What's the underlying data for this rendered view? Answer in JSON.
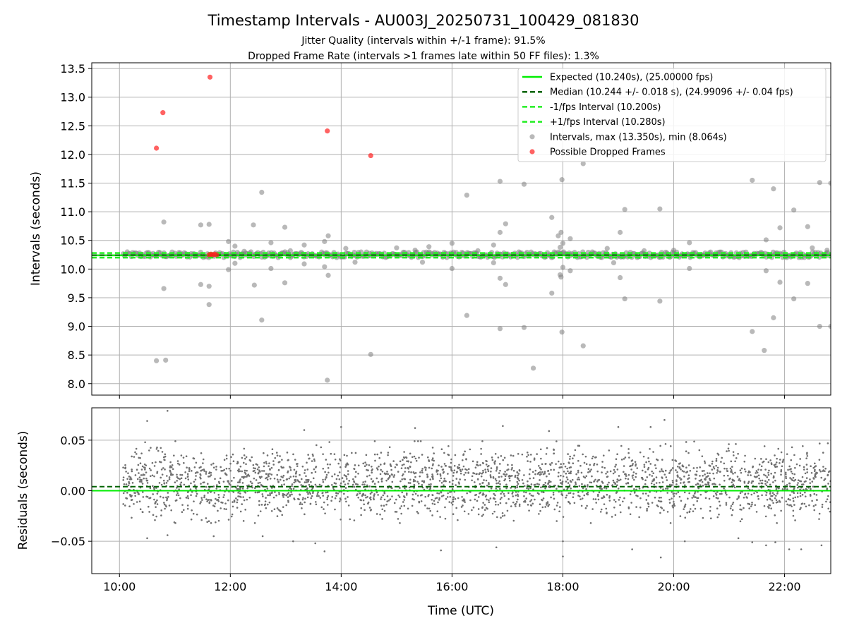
{
  "chart_data": [
    {
      "type": "scatter",
      "panel": "intervals",
      "title": "Timestamp Intervals - AU003J_20250731_100429_081830",
      "subtitle_lines": [
        "Jitter Quality (intervals within +/-1 frame): 91.5%",
        "Dropped Frame Rate (intervals >1 frames late within 50 FF files): 1.3%"
      ],
      "ylabel": "Intervals (seconds)",
      "ylim": [
        7.8,
        13.6
      ],
      "yticks": [
        "8.0",
        "8.5",
        "9.0",
        "9.5",
        "10.0",
        "10.5",
        "11.0",
        "11.5",
        "12.0",
        "12.5",
        "13.0",
        "13.5"
      ],
      "grid": true,
      "legend_position": "upper right",
      "reference_lines": [
        {
          "name": "Expected (10.240s), (25.00000 fps)",
          "y": 10.24,
          "color": "#00ee00",
          "style": "solid"
        },
        {
          "name": "Median (10.244 +/- 0.018 s), (24.99096 +/- 0.04 fps)",
          "y": 10.244,
          "color": "#006400",
          "style": "dashed"
        },
        {
          "name": "-1/fps Interval (10.200s)",
          "y": 10.2,
          "color": "#22ee22",
          "style": "dashed"
        },
        {
          "name": "+1/fps Interval (10.280s)",
          "y": 10.28,
          "color": "#22ee22",
          "style": "dashed"
        }
      ],
      "series": [
        {
          "name": "Intervals, max (13.350s), min (8.064s)",
          "color": "#808080",
          "baseline_band": {
            "y_min": 10.2,
            "y_max": 10.3,
            "x_start": "10:04",
            "x_end": "22:48"
          },
          "points": [
            [
              "10:40",
              8.4
            ],
            [
              "10:50",
              8.41
            ],
            [
              "10:48",
              9.66
            ],
            [
              "10:48",
              10.82
            ],
            [
              "11:28",
              10.77
            ],
            [
              "11:37",
              10.78
            ],
            [
              "11:28",
              9.73
            ],
            [
              "11:37",
              9.7
            ],
            [
              "11:37",
              9.38
            ],
            [
              "11:58",
              10.48
            ],
            [
              "12:05",
              10.4
            ],
            [
              "12:05",
              10.1
            ],
            [
              "11:58",
              9.99
            ],
            [
              "12:15",
              10.31
            ],
            [
              "12:25",
              10.77
            ],
            [
              "12:26",
              9.72
            ],
            [
              "12:34",
              11.34
            ],
            [
              "12:34",
              9.11
            ],
            [
              "12:44",
              10.46
            ],
            [
              "12:44",
              10.01
            ],
            [
              "12:59",
              10.73
            ],
            [
              "12:59",
              9.76
            ],
            [
              "13:05",
              10.32
            ],
            [
              "13:20",
              10.42
            ],
            [
              "13:20",
              10.09
            ],
            [
              "13:42",
              10.48
            ],
            [
              "13:46",
              10.58
            ],
            [
              "13:42",
              10.04
            ],
            [
              "13:46",
              9.89
            ],
            [
              "13:45",
              8.06
            ],
            [
              "14:05",
              10.36
            ],
            [
              "14:15",
              10.12
            ],
            [
              "14:32",
              8.51
            ],
            [
              "15:00",
              10.37
            ],
            [
              "15:20",
              10.33
            ],
            [
              "15:28",
              10.12
            ],
            [
              "15:35",
              10.39
            ],
            [
              "16:00",
              10.45
            ],
            [
              "16:00",
              10.01
            ],
            [
              "16:16",
              11.29
            ],
            [
              "16:16",
              9.19
            ],
            [
              "16:28",
              10.32
            ],
            [
              "16:45",
              10.42
            ],
            [
              "16:45",
              10.11
            ],
            [
              "16:52",
              11.53
            ],
            [
              "16:52",
              10.64
            ],
            [
              "16:58",
              10.79
            ],
            [
              "16:52",
              9.84
            ],
            [
              "16:58",
              9.73
            ],
            [
              "16:52",
              8.96
            ],
            [
              "17:18",
              11.48
            ],
            [
              "17:18",
              8.98
            ],
            [
              "17:28",
              8.27
            ],
            [
              "17:48",
              10.9
            ],
            [
              "17:48",
              9.58
            ],
            [
              "17:55",
              10.58
            ],
            [
              "17:58",
              10.64
            ],
            [
              "17:57",
              10.38
            ],
            [
              "17:57",
              9.9
            ],
            [
              "17:58",
              9.86
            ],
            [
              "17:59",
              11.56
            ],
            [
              "17:59",
              8.9
            ],
            [
              "18:00",
              10.45
            ],
            [
              "18:00",
              10.03
            ],
            [
              "18:08",
              10.53
            ],
            [
              "18:08",
              9.97
            ],
            [
              "18:22",
              11.84
            ],
            [
              "18:22",
              8.66
            ],
            [
              "18:48",
              10.36
            ],
            [
              "18:55",
              10.11
            ],
            [
              "19:02",
              10.64
            ],
            [
              "19:07",
              11.04
            ],
            [
              "19:07",
              9.48
            ],
            [
              "19:02",
              9.85
            ],
            [
              "19:28",
              10.32
            ],
            [
              "19:45",
              11.05
            ],
            [
              "19:45",
              9.44
            ],
            [
              "20:00",
              10.33
            ],
            [
              "20:17",
              10.46
            ],
            [
              "20:17",
              10.01
            ],
            [
              "21:25",
              11.55
            ],
            [
              "21:25",
              8.91
            ],
            [
              "21:40",
              10.51
            ],
            [
              "21:40",
              9.97
            ],
            [
              "21:38",
              8.58
            ],
            [
              "21:48",
              11.4
            ],
            [
              "21:48",
              9.15
            ],
            [
              "21:55",
              10.72
            ],
            [
              "21:55",
              9.77
            ],
            [
              "22:10",
              11.03
            ],
            [
              "22:10",
              9.48
            ],
            [
              "22:25",
              10.74
            ],
            [
              "22:25",
              9.75
            ],
            [
              "22:30",
              10.37
            ],
            [
              "22:38",
              11.51
            ],
            [
              "22:38",
              9.0
            ],
            [
              "22:46",
              10.33
            ],
            [
              "22:50",
              11.5
            ],
            [
              "22:50",
              9.0
            ]
          ]
        },
        {
          "name": "Possible Dropped Frames",
          "color": "#ff2020",
          "points": [
            [
              "10:40",
              12.11
            ],
            [
              "10:47",
              12.73
            ],
            [
              "11:38",
              13.35
            ],
            [
              "13:45",
              12.41
            ],
            [
              "14:32",
              11.98
            ],
            [
              "11:37",
              10.25
            ],
            [
              "11:39",
              10.26
            ],
            [
              "11:41",
              10.25
            ],
            [
              "11:43",
              10.26
            ],
            [
              "11:45",
              10.25
            ]
          ]
        }
      ]
    },
    {
      "type": "scatter",
      "panel": "residuals",
      "xlabel": "Time (UTC)",
      "ylabel": "Residuals (seconds)",
      "ylim": [
        -0.082,
        0.082
      ],
      "yticks": [
        "−0.05",
        "0.00",
        "0.05"
      ],
      "xlim": [
        "09:30",
        "22:50"
      ],
      "xticks": [
        "10:00",
        "12:00",
        "14:00",
        "16:00",
        "18:00",
        "20:00",
        "22:00"
      ],
      "grid": true,
      "reference_lines": [
        {
          "y": 0.0,
          "color": "#00ee00",
          "style": "solid"
        },
        {
          "y": 0.004,
          "color": "#006400",
          "style": "dashed"
        }
      ],
      "series": [
        {
          "name": "residuals",
          "color": "#707070",
          "x_start": "10:04",
          "x_end": "22:50",
          "count": 2600,
          "band_min": -0.03,
          "band_max": 0.045,
          "outliers": [
            [
              "10:30",
              0.069
            ],
            [
              "10:30",
              -0.047
            ],
            [
              "10:52",
              0.079
            ],
            [
              "10:52",
              -0.044
            ],
            [
              "11:42",
              -0.045
            ],
            [
              "12:35",
              -0.045
            ],
            [
              "13:08",
              -0.05
            ],
            [
              "13:20",
              0.06
            ],
            [
              "13:32",
              -0.052
            ],
            [
              "13:42",
              -0.06
            ],
            [
              "14:00",
              0.063
            ],
            [
              "15:20",
              0.062
            ],
            [
              "15:48",
              -0.059
            ],
            [
              "16:48",
              -0.056
            ],
            [
              "16:55",
              0.064
            ],
            [
              "17:45",
              0.059
            ],
            [
              "18:00",
              -0.065
            ],
            [
              "18:00",
              -0.05
            ],
            [
              "19:00",
              0.063
            ],
            [
              "19:15",
              -0.058
            ],
            [
              "19:35",
              0.063
            ],
            [
              "19:46",
              -0.066
            ],
            [
              "19:50",
              0.07
            ],
            [
              "20:12",
              -0.05
            ],
            [
              "21:10",
              -0.047
            ],
            [
              "21:25",
              -0.051
            ],
            [
              "21:40",
              -0.054
            ],
            [
              "21:50",
              -0.051
            ],
            [
              "22:05",
              -0.058
            ],
            [
              "22:18",
              -0.058
            ],
            [
              "22:40",
              -0.054
            ]
          ]
        }
      ]
    }
  ]
}
